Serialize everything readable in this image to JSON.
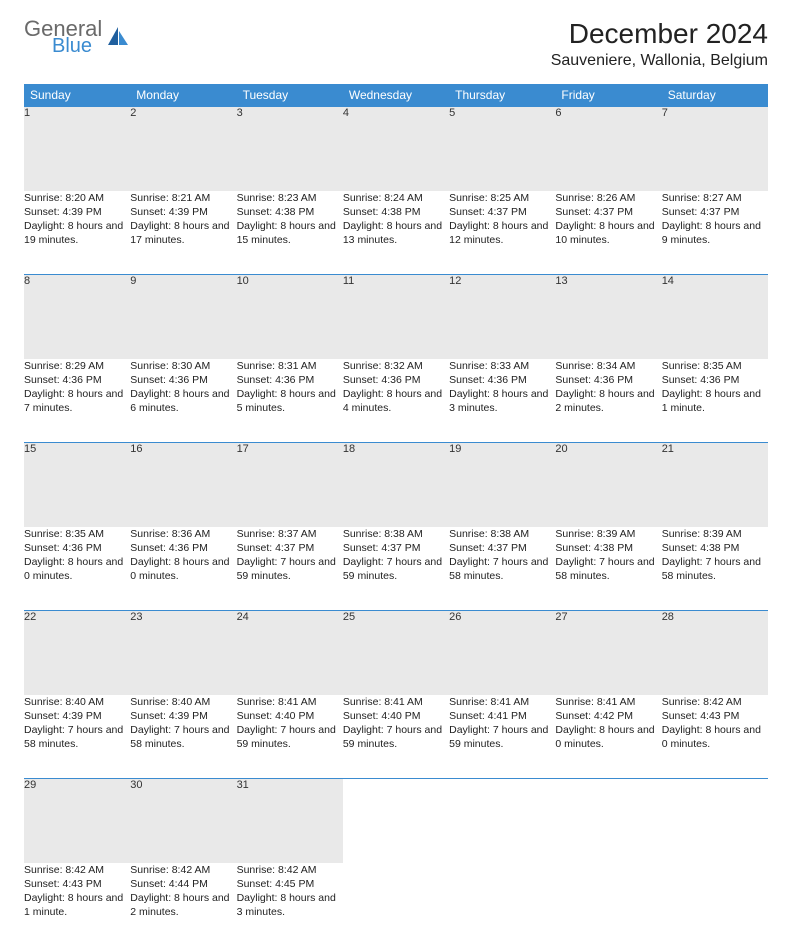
{
  "logo": {
    "text1": "General",
    "text2": "Blue",
    "color1": "#6a6a6a",
    "color2": "#3a8bd0"
  },
  "title": "December 2024",
  "location": "Sauveniere, Wallonia, Belgium",
  "colors": {
    "header_bg": "#3a8bd0",
    "header_text": "#ffffff",
    "daynum_bg": "#e9e9e9",
    "border": "#3a8bd0",
    "body_text": "#222222"
  },
  "fonts": {
    "title_size": 28,
    "location_size": 16,
    "th_size": 12,
    "cell_size": 10.5
  },
  "weekdays": [
    "Sunday",
    "Monday",
    "Tuesday",
    "Wednesday",
    "Thursday",
    "Friday",
    "Saturday"
  ],
  "weeks": [
    [
      {
        "n": "1",
        "sr": "Sunrise: 8:20 AM",
        "ss": "Sunset: 4:39 PM",
        "dl": "Daylight: 8 hours and 19 minutes."
      },
      {
        "n": "2",
        "sr": "Sunrise: 8:21 AM",
        "ss": "Sunset: 4:39 PM",
        "dl": "Daylight: 8 hours and 17 minutes."
      },
      {
        "n": "3",
        "sr": "Sunrise: 8:23 AM",
        "ss": "Sunset: 4:38 PM",
        "dl": "Daylight: 8 hours and 15 minutes."
      },
      {
        "n": "4",
        "sr": "Sunrise: 8:24 AM",
        "ss": "Sunset: 4:38 PM",
        "dl": "Daylight: 8 hours and 13 minutes."
      },
      {
        "n": "5",
        "sr": "Sunrise: 8:25 AM",
        "ss": "Sunset: 4:37 PM",
        "dl": "Daylight: 8 hours and 12 minutes."
      },
      {
        "n": "6",
        "sr": "Sunrise: 8:26 AM",
        "ss": "Sunset: 4:37 PM",
        "dl": "Daylight: 8 hours and 10 minutes."
      },
      {
        "n": "7",
        "sr": "Sunrise: 8:27 AM",
        "ss": "Sunset: 4:37 PM",
        "dl": "Daylight: 8 hours and 9 minutes."
      }
    ],
    [
      {
        "n": "8",
        "sr": "Sunrise: 8:29 AM",
        "ss": "Sunset: 4:36 PM",
        "dl": "Daylight: 8 hours and 7 minutes."
      },
      {
        "n": "9",
        "sr": "Sunrise: 8:30 AM",
        "ss": "Sunset: 4:36 PM",
        "dl": "Daylight: 8 hours and 6 minutes."
      },
      {
        "n": "10",
        "sr": "Sunrise: 8:31 AM",
        "ss": "Sunset: 4:36 PM",
        "dl": "Daylight: 8 hours and 5 minutes."
      },
      {
        "n": "11",
        "sr": "Sunrise: 8:32 AM",
        "ss": "Sunset: 4:36 PM",
        "dl": "Daylight: 8 hours and 4 minutes."
      },
      {
        "n": "12",
        "sr": "Sunrise: 8:33 AM",
        "ss": "Sunset: 4:36 PM",
        "dl": "Daylight: 8 hours and 3 minutes."
      },
      {
        "n": "13",
        "sr": "Sunrise: 8:34 AM",
        "ss": "Sunset: 4:36 PM",
        "dl": "Daylight: 8 hours and 2 minutes."
      },
      {
        "n": "14",
        "sr": "Sunrise: 8:35 AM",
        "ss": "Sunset: 4:36 PM",
        "dl": "Daylight: 8 hours and 1 minute."
      }
    ],
    [
      {
        "n": "15",
        "sr": "Sunrise: 8:35 AM",
        "ss": "Sunset: 4:36 PM",
        "dl": "Daylight: 8 hours and 0 minutes."
      },
      {
        "n": "16",
        "sr": "Sunrise: 8:36 AM",
        "ss": "Sunset: 4:36 PM",
        "dl": "Daylight: 8 hours and 0 minutes."
      },
      {
        "n": "17",
        "sr": "Sunrise: 8:37 AM",
        "ss": "Sunset: 4:37 PM",
        "dl": "Daylight: 7 hours and 59 minutes."
      },
      {
        "n": "18",
        "sr": "Sunrise: 8:38 AM",
        "ss": "Sunset: 4:37 PM",
        "dl": "Daylight: 7 hours and 59 minutes."
      },
      {
        "n": "19",
        "sr": "Sunrise: 8:38 AM",
        "ss": "Sunset: 4:37 PM",
        "dl": "Daylight: 7 hours and 58 minutes."
      },
      {
        "n": "20",
        "sr": "Sunrise: 8:39 AM",
        "ss": "Sunset: 4:38 PM",
        "dl": "Daylight: 7 hours and 58 minutes."
      },
      {
        "n": "21",
        "sr": "Sunrise: 8:39 AM",
        "ss": "Sunset: 4:38 PM",
        "dl": "Daylight: 7 hours and 58 minutes."
      }
    ],
    [
      {
        "n": "22",
        "sr": "Sunrise: 8:40 AM",
        "ss": "Sunset: 4:39 PM",
        "dl": "Daylight: 7 hours and 58 minutes."
      },
      {
        "n": "23",
        "sr": "Sunrise: 8:40 AM",
        "ss": "Sunset: 4:39 PM",
        "dl": "Daylight: 7 hours and 58 minutes."
      },
      {
        "n": "24",
        "sr": "Sunrise: 8:41 AM",
        "ss": "Sunset: 4:40 PM",
        "dl": "Daylight: 7 hours and 59 minutes."
      },
      {
        "n": "25",
        "sr": "Sunrise: 8:41 AM",
        "ss": "Sunset: 4:40 PM",
        "dl": "Daylight: 7 hours and 59 minutes."
      },
      {
        "n": "26",
        "sr": "Sunrise: 8:41 AM",
        "ss": "Sunset: 4:41 PM",
        "dl": "Daylight: 7 hours and 59 minutes."
      },
      {
        "n": "27",
        "sr": "Sunrise: 8:41 AM",
        "ss": "Sunset: 4:42 PM",
        "dl": "Daylight: 8 hours and 0 minutes."
      },
      {
        "n": "28",
        "sr": "Sunrise: 8:42 AM",
        "ss": "Sunset: 4:43 PM",
        "dl": "Daylight: 8 hours and 0 minutes."
      }
    ],
    [
      {
        "n": "29",
        "sr": "Sunrise: 8:42 AM",
        "ss": "Sunset: 4:43 PM",
        "dl": "Daylight: 8 hours and 1 minute."
      },
      {
        "n": "30",
        "sr": "Sunrise: 8:42 AM",
        "ss": "Sunset: 4:44 PM",
        "dl": "Daylight: 8 hours and 2 minutes."
      },
      {
        "n": "31",
        "sr": "Sunrise: 8:42 AM",
        "ss": "Sunset: 4:45 PM",
        "dl": "Daylight: 8 hours and 3 minutes."
      },
      null,
      null,
      null,
      null
    ]
  ]
}
